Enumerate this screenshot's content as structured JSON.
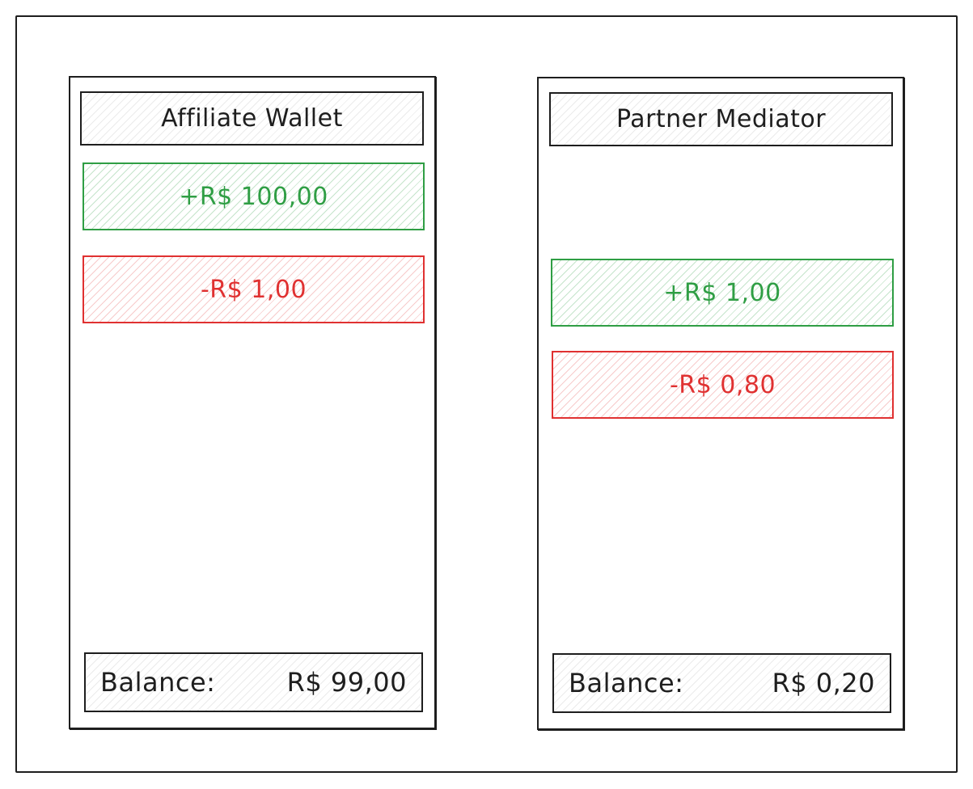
{
  "colors": {
    "credit": "#2f9e44",
    "debit": "#e03131",
    "stroke": "#1e1e1e"
  },
  "affiliate_wallet": {
    "title": "Affiliate Wallet",
    "credit": "+R$ 100,00",
    "debit": "-R$ 1,00",
    "balance_label": "Balance:",
    "balance_value": "R$ 99,00"
  },
  "partner_mediator": {
    "title": "Partner Mediator",
    "credit": "+R$ 1,00",
    "debit": "-R$ 0,80",
    "balance_label": "Balance:",
    "balance_value": "R$ 0,20"
  }
}
